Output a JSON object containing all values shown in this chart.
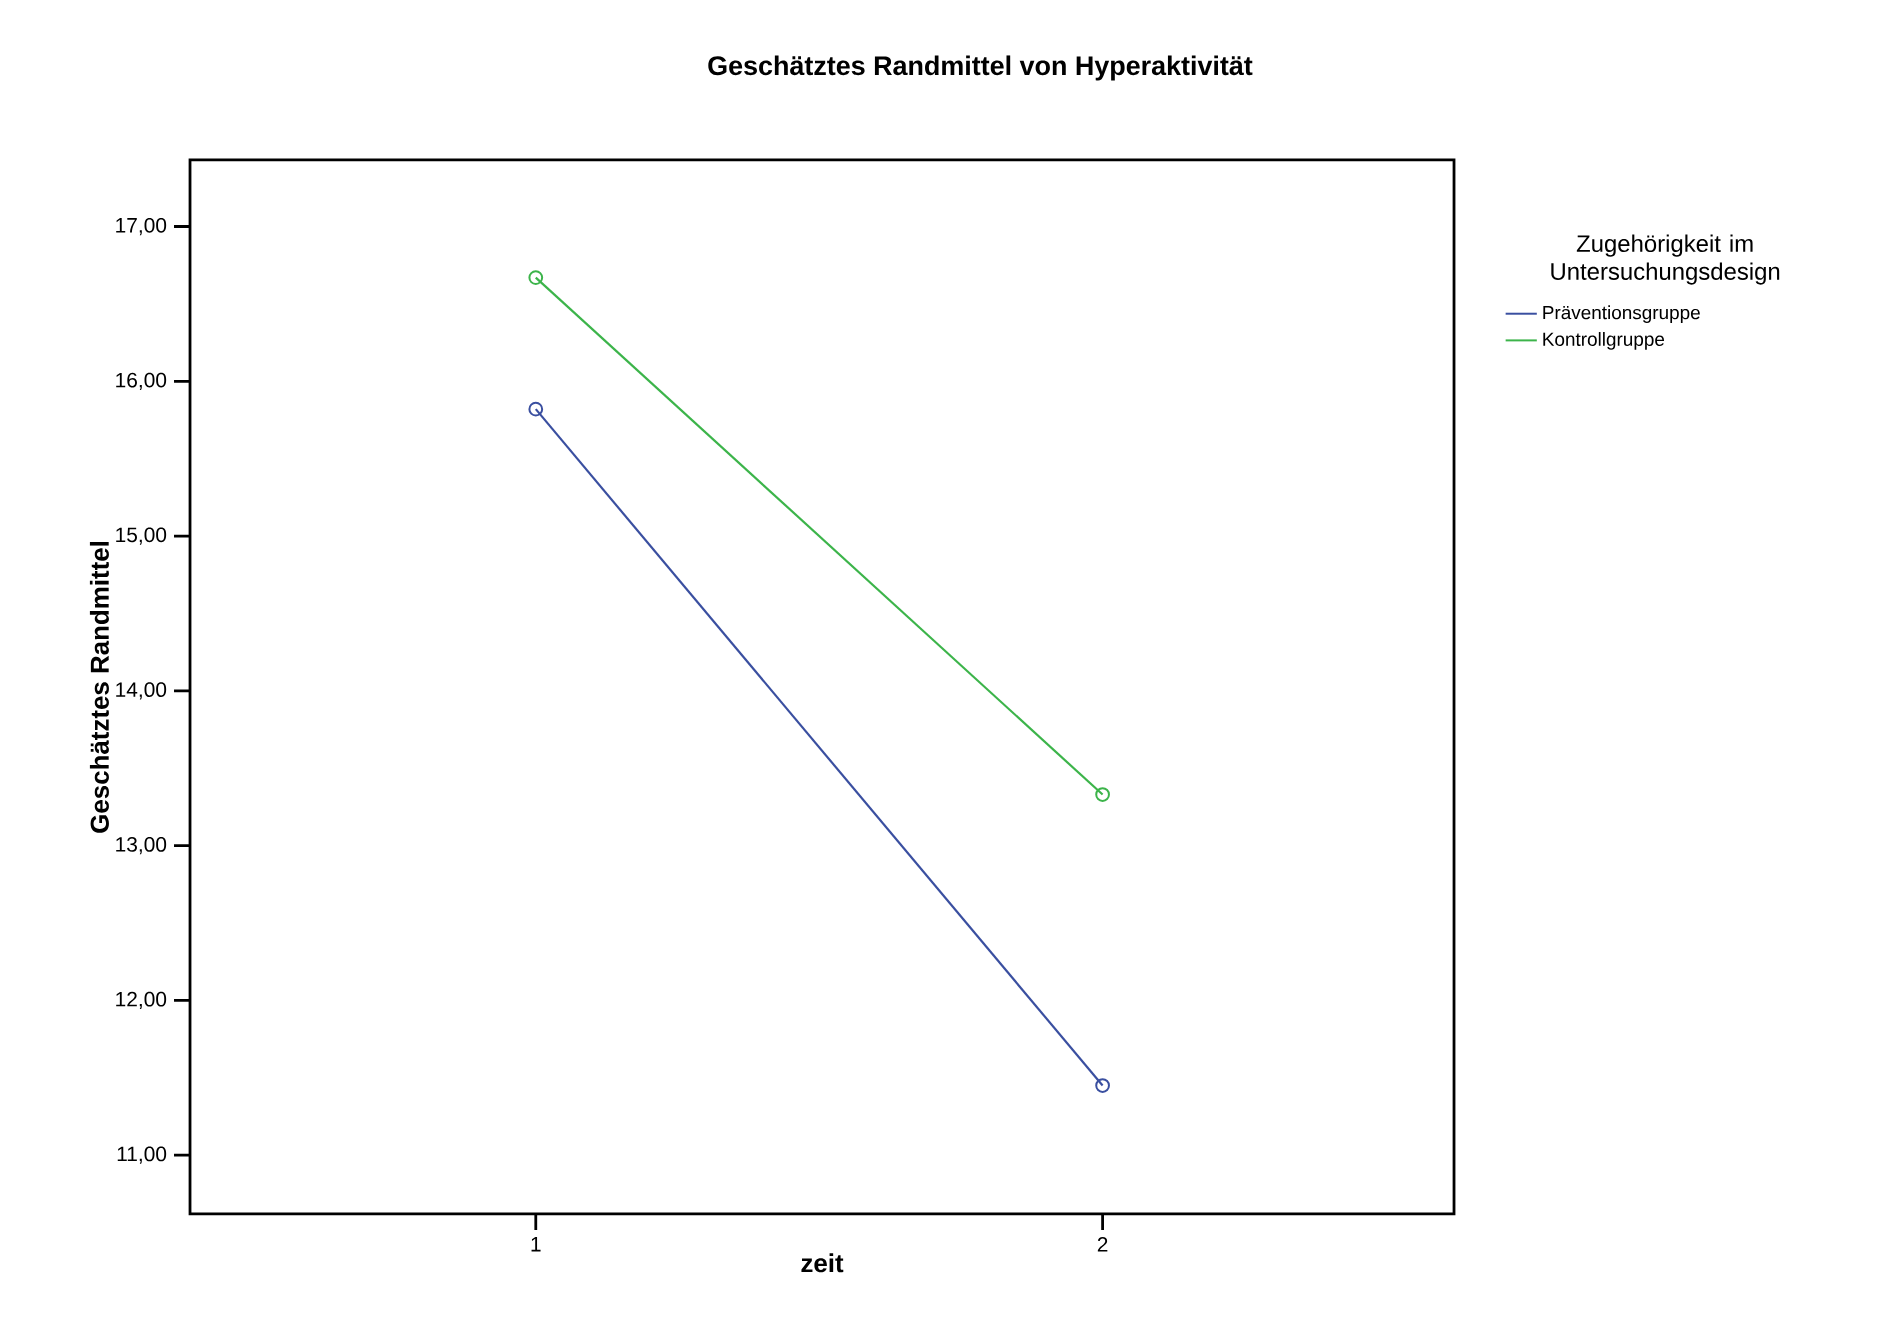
{
  "chart_data": {
    "type": "line",
    "title": "Geschätztes Randmittel von Hyperaktivität",
    "xlabel": "zeit",
    "ylabel": "Geschätztes Randmittel",
    "legend_title": "Zugehörigkeit im Untersuchungsdesign",
    "categories": [
      "1",
      "2"
    ],
    "series": [
      {
        "name": "Präventionsgruppe",
        "color": "#3a4fa0",
        "values": [
          15.82,
          11.45
        ]
      },
      {
        "name": "Kontrollgruppe",
        "color": "#3cb44a",
        "values": [
          16.67,
          13.33
        ]
      }
    ],
    "ylim": [
      10.62,
      17.43
    ],
    "yticks": [
      {
        "value": 11,
        "label": "11,00"
      },
      {
        "value": 12,
        "label": "12,00"
      },
      {
        "value": 13,
        "label": "13,00"
      },
      {
        "value": 14,
        "label": "14,00"
      },
      {
        "value": 15,
        "label": "15,00"
      },
      {
        "value": 16,
        "label": "16,00"
      },
      {
        "value": 17,
        "label": "17,00"
      }
    ],
    "marker": "circle",
    "legend": "right",
    "grid": false
  }
}
